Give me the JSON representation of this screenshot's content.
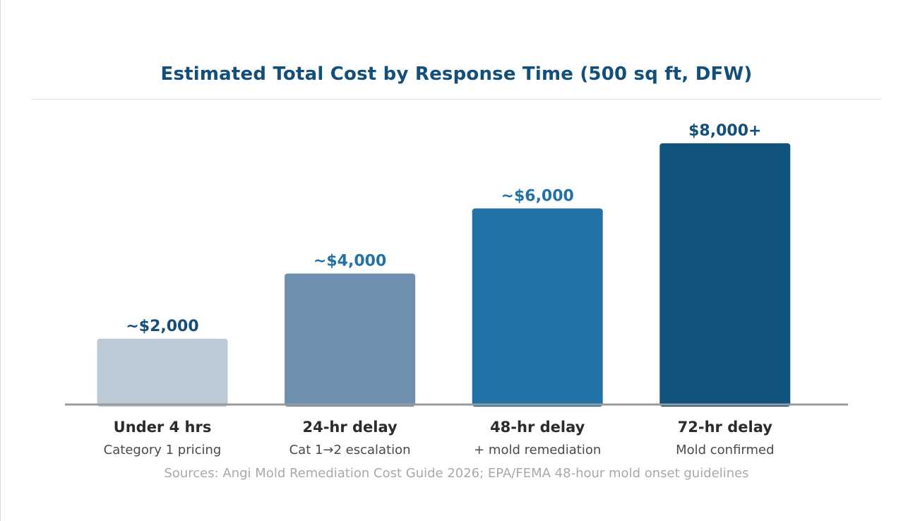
{
  "chart_data": {
    "type": "bar",
    "title": "Estimated Total Cost by Response Time (500 sq ft, DFW)",
    "categories": [
      "Under 4 hrs",
      "24-hr delay",
      "48-hr delay",
      "72-hr delay"
    ],
    "subcategories": [
      "Category 1 pricing",
      "Cat 1→2 escalation",
      "+ mold remediation",
      "Mold confirmed"
    ],
    "values": [
      2000,
      4000,
      6000,
      8000
    ],
    "data_labels": [
      "~$2,000",
      "~$4,000",
      "~$6,000",
      "$8,000+"
    ],
    "colors": [
      "#bccad6",
      "#6e8fae",
      "#2272a8",
      "#10547e"
    ],
    "label_colors": [
      "#124f7a",
      "#2272a8",
      "#2272a8",
      "#124f7a"
    ],
    "ylim": [
      0,
      8000
    ],
    "grid": false,
    "legend": "none",
    "xlabel": "",
    "ylabel": ""
  },
  "source_note": "Sources: Angi Mold Remediation Cost Guide 2026; EPA/FEMA 48-hour mold onset guidelines"
}
